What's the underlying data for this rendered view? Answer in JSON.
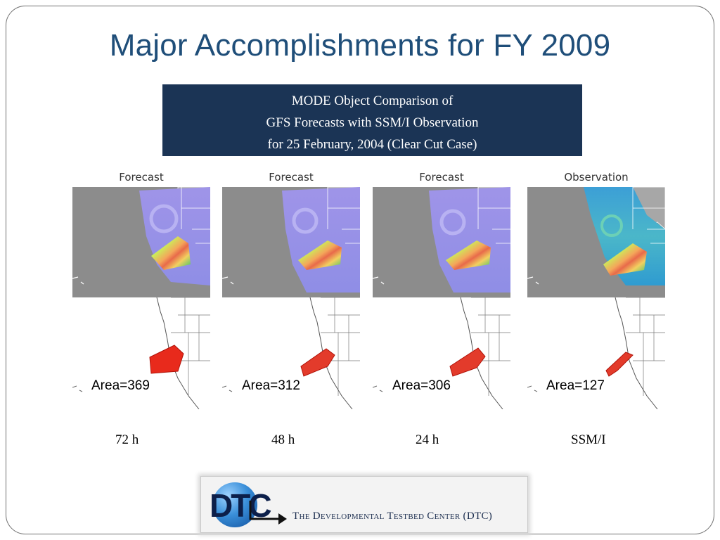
{
  "slide": {
    "title": "Major Accomplishments for  FY 2009",
    "caption": {
      "line1": "MODE Object Comparison of",
      "line2": "GFS Forecasts with SSM/I Observation",
      "line3": "for 25 February, 2004 (Clear Cut Case)"
    }
  },
  "panels": [
    {
      "title": "Forecast",
      "area": "Area=369",
      "lead": "72 h"
    },
    {
      "title": "Forecast",
      "area": "Area=312",
      "lead": "48 h"
    },
    {
      "title": "Forecast",
      "area": "Area=306",
      "lead": "24 h"
    },
    {
      "title": "Observation",
      "area": "Area=127",
      "lead": "SSM/I"
    }
  ],
  "logo": {
    "letters": "DTC",
    "text": "The Developmental Testbed Center (DTC)"
  },
  "colors": {
    "title": "#1f4e79",
    "caption_bg": "#1b3455",
    "ocean_gray": "#8c8c8c",
    "object_red": "#e82a1c"
  }
}
